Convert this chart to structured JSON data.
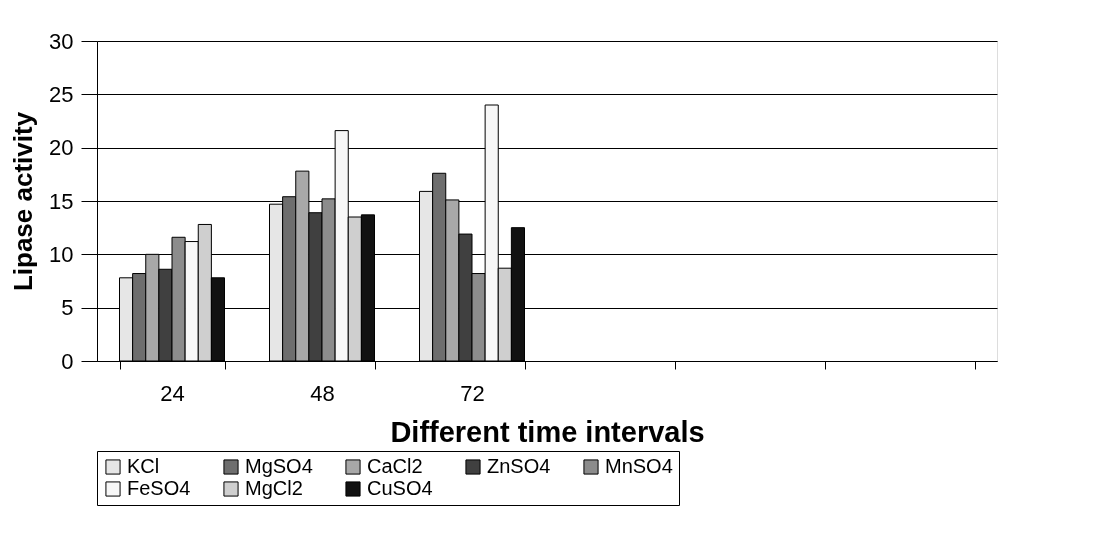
{
  "chart_data": {
    "type": "bar",
    "xlabel": "Different time intervals",
    "ylabel": "Lipase activity",
    "categories": [
      "24",
      "48",
      "72",
      null,
      null,
      null
    ],
    "series": [
      {
        "name": "KCl",
        "color": "#e6e6e6",
        "values": [
          7.8,
          14.7,
          15.9,
          null,
          null,
          null
        ]
      },
      {
        "name": "MgSO4",
        "color": "#6e6e6e",
        "values": [
          8.2,
          15.4,
          17.6,
          null,
          null,
          null
        ]
      },
      {
        "name": "CaCl2",
        "color": "#a8a8a8",
        "values": [
          10.0,
          17.8,
          15.1,
          null,
          null,
          null
        ]
      },
      {
        "name": "ZnSO4",
        "color": "#404040",
        "values": [
          8.6,
          13.9,
          11.9,
          null,
          null,
          null
        ]
      },
      {
        "name": "MnSO4",
        "color": "#8c8c8c",
        "values": [
          11.6,
          15.2,
          8.2,
          null,
          null,
          null
        ]
      },
      {
        "name": "FeSO4",
        "color": "#f7f7f7",
        "values": [
          11.2,
          21.6,
          24.0,
          null,
          null,
          null
        ]
      },
      {
        "name": "MgCl2",
        "color": "#cfcfcf",
        "values": [
          12.8,
          13.5,
          8.7,
          null,
          null,
          null
        ]
      },
      {
        "name": "CuSO4",
        "color": "#111111",
        "values": [
          7.8,
          13.7,
          12.5,
          null,
          null,
          null
        ]
      }
    ],
    "ylim": [
      0,
      30
    ],
    "yticks": [
      0,
      5,
      10,
      15,
      20,
      25,
      30
    ],
    "grid": "y",
    "legend": "bottom"
  }
}
